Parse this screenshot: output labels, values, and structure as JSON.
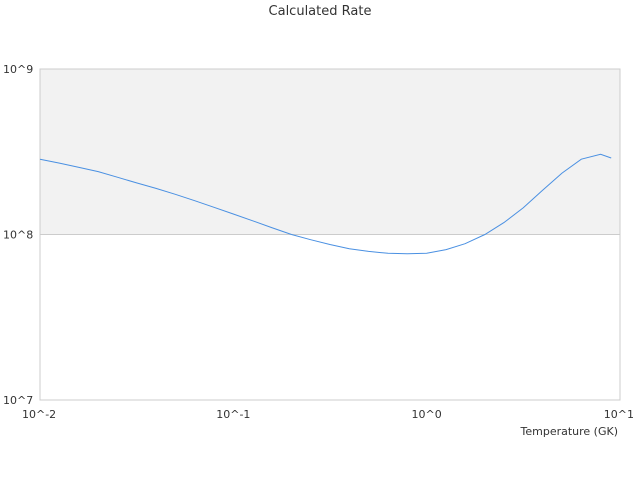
{
  "chart_data": {
    "type": "line",
    "title": "Calculated Rate",
    "xlabel": "Temperature (GK)",
    "ylabel": "",
    "x_scale": "log",
    "y_scale": "log",
    "xlim": [
      0.01,
      10
    ],
    "ylim": [
      10000000,
      1000000000
    ],
    "x_tick_labels": [
      "10^-2",
      "10^-1",
      "10^0",
      "10^1"
    ],
    "y_tick_labels": [
      "10^7",
      "10^8",
      "10^9"
    ],
    "grid": false,
    "legend": "none",
    "series": [
      {
        "color": "#4a90e2",
        "x": [
          0.01,
          0.0126,
          0.0158,
          0.02,
          0.0251,
          0.0316,
          0.0398,
          0.0501,
          0.0631,
          0.0794,
          0.1,
          0.126,
          0.158,
          0.2,
          0.251,
          0.316,
          0.398,
          0.501,
          0.631,
          0.794,
          1.0,
          1.26,
          1.58,
          2.0,
          2.51,
          3.16,
          3.98,
          5.01,
          6.31,
          7.94,
          9.0
        ],
        "y": [
          285000000,
          270000000,
          255000000,
          240000000,
          222000000,
          205000000,
          190000000,
          175000000,
          160000000,
          146000000,
          133000000,
          121000000,
          110000000,
          100000000,
          93000000,
          87000000,
          82000000,
          79000000,
          77000000,
          76500000,
          77000000,
          81000000,
          88000000,
          100000000,
          118000000,
          145000000,
          185000000,
          235000000,
          285000000,
          305000000,
          290000000
        ]
      }
    ]
  },
  "colors": {
    "upper_band": "#f2f2f2",
    "axis": "#cccccc",
    "line": "#4a90e2"
  }
}
